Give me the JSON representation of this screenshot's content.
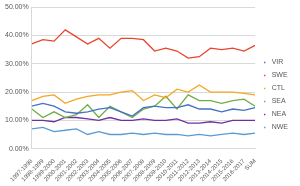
{
  "chart_data": {
    "type": "line",
    "categories": [
      "1997-1998",
      "1998-1999",
      "1999-2000",
      "2000-2001",
      "2001-2002",
      "2002-2003",
      "2003-2004",
      "2004-2005",
      "2005-2006",
      "2006-2007",
      "2007-2008",
      "2008-2009",
      "2009-2010",
      "2010-2011",
      "2011-2012",
      "2012-2013",
      "2013-2014",
      "2014-2015",
      "2015-2016",
      "2016-2017",
      "SUM"
    ],
    "series": [
      {
        "name": "VIR",
        "color": "#4472c4",
        "values": [
          15,
          16,
          15,
          13,
          12.5,
          13,
          14,
          14.5,
          13,
          11.5,
          14.5,
          15,
          14.5,
          14.5,
          15.5,
          14,
          14,
          13,
          14,
          13.5,
          14.5
        ]
      },
      {
        "name": "SWE",
        "color": "#e8452c",
        "values": [
          37,
          38.5,
          38,
          42,
          39.5,
          37,
          39,
          35.5,
          39,
          39,
          38.5,
          34.5,
          35.5,
          34.5,
          32,
          32.5,
          35.5,
          35,
          35.5,
          34.5,
          36.5
        ]
      },
      {
        "name": "CTL",
        "color": "#f5a623",
        "values": [
          17,
          18.5,
          19,
          16,
          17.5,
          18.5,
          19,
          19,
          20,
          20.5,
          17,
          19,
          18,
          21,
          20,
          22.5,
          20,
          20,
          20,
          19.5,
          19
        ]
      },
      {
        "name": "SEA",
        "color": "#70ad47",
        "values": [
          14,
          11,
          13,
          11,
          12,
          15.5,
          11,
          15,
          13,
          11,
          14,
          15,
          18.5,
          14,
          19,
          17,
          17,
          16,
          17,
          17.5,
          15
        ]
      },
      {
        "name": "NEA",
        "color": "#7030a0",
        "values": [
          10,
          10,
          9.5,
          11,
          11,
          10.5,
          10,
          11,
          10,
          10,
          10.5,
          10,
          10,
          10.5,
          9,
          9,
          9.5,
          9,
          10,
          10,
          10
        ]
      },
      {
        "name": "NWE",
        "color": "#5b9bd5",
        "values": [
          7,
          7.5,
          6,
          6.5,
          7,
          5,
          6,
          5,
          5,
          5.5,
          5,
          5.5,
          5,
          5,
          4.5,
          5,
          4.5,
          5,
          5.5,
          5,
          5.5
        ]
      }
    ],
    "ylim": [
      0,
      50
    ],
    "yticks": [
      {
        "value": 0,
        "label": "0.00%"
      },
      {
        "value": 10,
        "label": "10.00%"
      },
      {
        "value": 20,
        "label": "20.00%"
      },
      {
        "value": 30,
        "label": "30.00%"
      },
      {
        "value": 40,
        "label": "40.00%"
      },
      {
        "value": 50,
        "label": "50.00%"
      }
    ],
    "grid": true,
    "legend": "right"
  }
}
